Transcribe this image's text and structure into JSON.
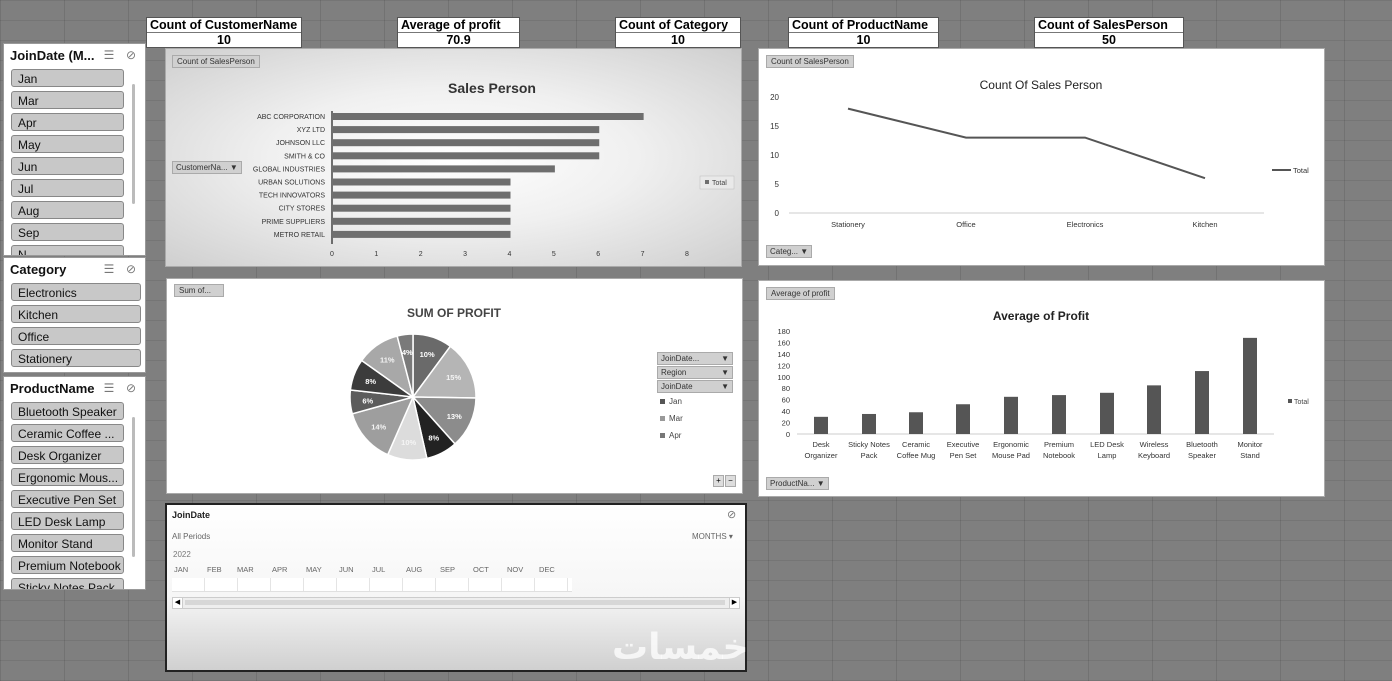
{
  "kpis": [
    {
      "label": "Count of CustomerName",
      "value": "10"
    },
    {
      "label": "Average of profit",
      "value": "70.9"
    },
    {
      "label": "Count of Category",
      "value": "10"
    },
    {
      "label": "Count of ProductName",
      "value": "10"
    },
    {
      "label": "Count of SalesPerson",
      "value": "50"
    }
  ],
  "slicers": {
    "joindate": {
      "title": "JoinDate (M...",
      "items": [
        "Jan",
        "Mar",
        "Apr",
        "May",
        "Jun",
        "Jul",
        "Aug",
        "Sep",
        "N..."
      ]
    },
    "category": {
      "title": "Category",
      "items": [
        "Electronics",
        "Kitchen",
        "Office",
        "Stationery"
      ]
    },
    "product": {
      "title": "ProductName",
      "items": [
        "Bluetooth Speaker",
        "Ceramic Coffee ...",
        "Desk Organizer",
        "Ergonomic Mous...",
        "Executive Pen Set",
        "LED Desk Lamp",
        "Monitor Stand",
        "Premium Notebook",
        "Sticky Notes Pack"
      ]
    }
  },
  "charts": {
    "sales_person": {
      "field_tag": "Count of SalesPerson",
      "dropdown": "CustomerNa...",
      "legend": "Total",
      "chart_data": {
        "type": "bar",
        "title": "Sales Person",
        "categories": [
          "ABC CORPORATION",
          "XYZ LTD",
          "JOHNSON LLC",
          "SMITH & CO",
          "GLOBAL INDUSTRIES",
          "URBAN SOLUTIONS",
          "TECH INNOVATORS",
          "CITY STORES",
          "PRIME SUPPLIERS",
          "METRO RETAIL"
        ],
        "values": [
          7,
          6,
          6,
          6,
          5,
          4,
          4,
          4,
          4,
          4
        ],
        "series": [
          {
            "name": "Total",
            "values": [
              7,
              6,
              6,
              6,
              5,
              4,
              4,
              4,
              4,
              4
            ]
          }
        ],
        "xlim": [
          0,
          8
        ],
        "ticks": [
          "0",
          "1",
          "2",
          "3",
          "4",
          "5",
          "6",
          "7",
          "8"
        ],
        "orientation": "horizontal",
        "grid": false,
        "legend_position": "right"
      }
    },
    "count_line": {
      "field_tag": "Count of SalesPerson",
      "dropdown": "Categ...",
      "legend": "Total",
      "chart_data": {
        "type": "line",
        "title": "Count Of Sales Person",
        "categories": [
          "Stationery",
          "Office",
          "Electronics",
          "Kitchen"
        ],
        "values": [
          18,
          13,
          13,
          6
        ],
        "series": [
          {
            "name": "Total",
            "values": [
              18,
              13,
              13,
              6
            ]
          }
        ],
        "ylim": [
          0,
          20
        ],
        "ticks": [
          "0",
          "5",
          "10",
          "15",
          "20"
        ],
        "grid": false,
        "legend_position": "right"
      }
    },
    "profit_pie": {
      "field_tag": "Sum of...",
      "filters": [
        "JoinDate...",
        "Region",
        "JoinDate"
      ],
      "legend": [
        "Jan",
        "Mar",
        "Apr"
      ],
      "buttons": [
        "+",
        "−"
      ],
      "chart_data": {
        "type": "pie",
        "title": "SUM OF PROFIT",
        "labels": [
          "10%",
          "15%",
          "13%",
          "8%",
          "10%",
          "14%",
          "6%",
          "8%",
          "11%",
          "4%"
        ],
        "values": [
          10,
          15,
          13,
          8,
          10,
          14,
          6,
          8,
          11,
          4
        ],
        "colors": [
          "#6a6a6a",
          "#b5b5b5",
          "#8c8c8c",
          "#222222",
          "#dcdcdc",
          "#9e9e9e",
          "#5c5c5c",
          "#3c3c3c",
          "#a8a8a8",
          "#7a7a7a"
        ]
      }
    },
    "avg_profit": {
      "field_tag": "Average of profit",
      "dropdown": "ProductNa...",
      "legend": "Total",
      "chart_data": {
        "type": "bar",
        "title": "Average of Profit",
        "categories": [
          "Desk Organizer",
          "Sticky Notes Pack",
          "Ceramic Coffee Mug",
          "Executive Pen Set",
          "Ergonomic Mouse Pad",
          "Premium Notebook",
          "LED Desk Lamp",
          "Wireless Keyboard",
          "Bluetooth Speaker",
          "Monitor Stand"
        ],
        "category_lines": [
          [
            "Desk",
            "Organizer"
          ],
          [
            "Sticky Notes",
            "Pack"
          ],
          [
            "Ceramic",
            "Coffee Mug"
          ],
          [
            "Executive",
            "Pen Set"
          ],
          [
            "Ergonomic",
            "Mouse Pad"
          ],
          [
            "Premium",
            "Notebook"
          ],
          [
            "LED Desk",
            "Lamp"
          ],
          [
            "Wireless",
            "Keyboard"
          ],
          [
            "Bluetooth",
            "Speaker"
          ],
          [
            "Monitor",
            "Stand"
          ]
        ],
        "values": [
          30,
          35,
          38,
          52,
          65,
          68,
          72,
          85,
          110,
          168
        ],
        "series": [
          {
            "name": "Total",
            "values": [
              30,
              35,
              38,
              52,
              65,
              68,
              72,
              85,
              110,
              168
            ]
          }
        ],
        "ylim": [
          0,
          180
        ],
        "ticks": [
          "0",
          "20",
          "40",
          "60",
          "80",
          "100",
          "120",
          "140",
          "160",
          "180"
        ],
        "grid": false,
        "legend_position": "right"
      }
    }
  },
  "timeline": {
    "title": "JoinDate",
    "periods": "All Periods",
    "unit": "MONTHS",
    "year": "2022",
    "months": [
      "JAN",
      "FEB",
      "MAR",
      "APR",
      "MAY",
      "JUN",
      "JUL",
      "AUG",
      "SEP",
      "OCT",
      "NOV",
      "DEC"
    ]
  },
  "watermark": "خمسات"
}
